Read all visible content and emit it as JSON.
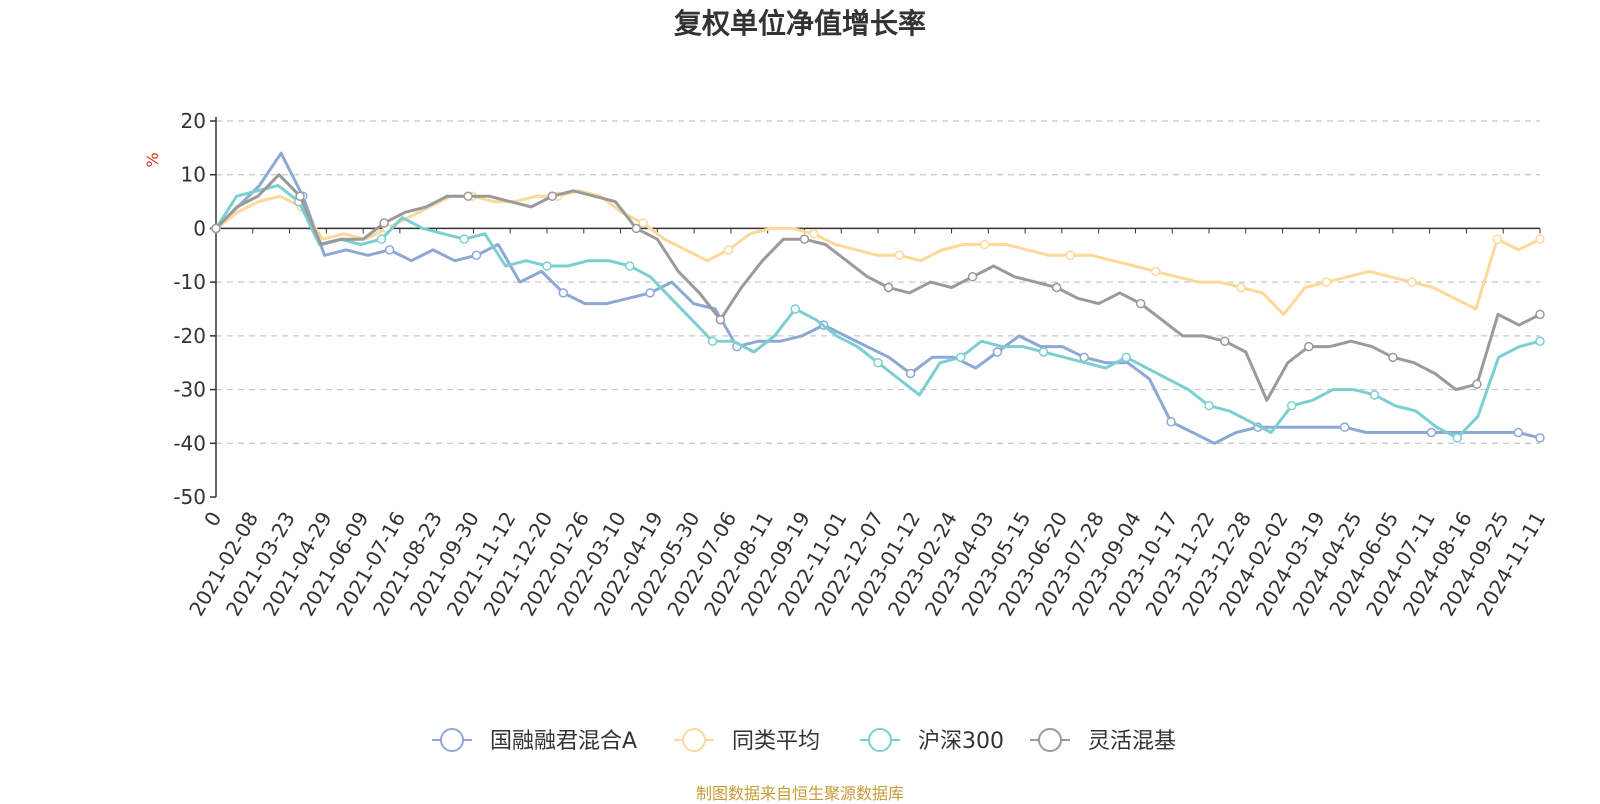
{
  "chart_data": {
    "type": "line",
    "title": "复权单位净值增长率",
    "ylabel": "%",
    "ylim": [
      -50,
      20
    ],
    "yticks": [
      20,
      10,
      0,
      -10,
      -20,
      -30,
      -40,
      -50
    ],
    "grid": true,
    "legend_position": "bottom",
    "x_tick_labels": [
      "0",
      "2021-02-08",
      "2021-03-23",
      "2021-04-29",
      "2021-06-09",
      "2021-07-16",
      "2021-08-23",
      "2021-09-30",
      "2021-11-12",
      "2021-12-20",
      "2022-01-26",
      "2022-03-10",
      "2022-04-19",
      "2022-05-30",
      "2022-07-06",
      "2022-08-11",
      "2022-09-19",
      "2022-11-01",
      "2022-12-07",
      "2023-01-12",
      "2023-02-24",
      "2023-04-03",
      "2023-05-15",
      "2023-06-20",
      "2023-07-28",
      "2023-09-04",
      "2023-10-17",
      "2023-11-22",
      "2023-12-28",
      "2024-02-02",
      "2024-03-19",
      "2024-04-25",
      "2024-06-05",
      "2024-07-11",
      "2024-08-16",
      "2024-09-25",
      "2024-11-11"
    ],
    "series": [
      {
        "name": "国融融君混合A",
        "color": "#8ea8d6",
        "values": [
          0,
          4,
          8,
          14,
          6,
          -5,
          -4,
          -5,
          -4,
          -6,
          -4,
          -6,
          -5,
          -3,
          -10,
          -8,
          -12,
          -14,
          -14,
          -13,
          -12,
          -10,
          -14,
          -15,
          -22,
          -21,
          -21,
          -20,
          -18,
          -20,
          -22,
          -24,
          -27,
          -24,
          -24,
          -26,
          -23,
          -20,
          -22,
          -22,
          -24,
          -25,
          -25,
          -28,
          -36,
          -38,
          -40,
          -38,
          -37,
          -37,
          -37,
          -37,
          -37,
          -38,
          -38,
          -38,
          -38,
          -38,
          -38,
          -38,
          -38,
          -39
        ]
      },
      {
        "name": "同类平均",
        "color": "#fcd899",
        "values": [
          0,
          3,
          5,
          6,
          4,
          -2,
          -1,
          -2,
          0,
          2,
          4,
          6,
          6,
          5,
          5,
          6,
          6,
          7,
          6,
          3,
          1,
          -2,
          -4,
          -6,
          -4,
          -1,
          0,
          0,
          -1,
          -3,
          -4,
          -5,
          -5,
          -6,
          -4,
          -3,
          -3,
          -3,
          -4,
          -5,
          -5,
          -5,
          -6,
          -7,
          -8,
          -9,
          -10,
          -10,
          -11,
          -12,
          -16,
          -11,
          -10,
          -9,
          -8,
          -9,
          -10,
          -11,
          -13,
          -15,
          -2,
          -4,
          -2
        ]
      },
      {
        "name": "沪深300",
        "color": "#7ccfd1",
        "values": [
          0,
          6,
          7,
          8,
          5,
          -3,
          -2,
          -3,
          -2,
          2,
          0,
          -1,
          -2,
          -1,
          -7,
          -6,
          -7,
          -7,
          -6,
          -6,
          -7,
          -9,
          -13,
          -17,
          -21,
          -21,
          -23,
          -20,
          -15,
          -17,
          -20,
          -22,
          -25,
          -28,
          -31,
          -25,
          -24,
          -21,
          -22,
          -22,
          -23,
          -24,
          -25,
          -26,
          -24,
          -26,
          -28,
          -30,
          -33,
          -34,
          -36,
          -38,
          -33,
          -32,
          -30,
          -30,
          -31,
          -33,
          -34,
          -37,
          -39,
          -35,
          -24,
          -22,
          -21
        ]
      },
      {
        "name": "灵活混基",
        "color": "#9a9a9a",
        "values": [
          0,
          4,
          6,
          10,
          6,
          -3,
          -2,
          -2,
          1,
          3,
          4,
          6,
          6,
          6,
          5,
          4,
          6,
          7,
          6,
          5,
          0,
          -2,
          -8,
          -12,
          -17,
          -11,
          -6,
          -2,
          -2,
          -3,
          -6,
          -9,
          -11,
          -12,
          -10,
          -11,
          -9,
          -7,
          -9,
          -10,
          -11,
          -13,
          -14,
          -12,
          -14,
          -17,
          -20,
          -20,
          -21,
          -23,
          -32,
          -25,
          -22,
          -22,
          -21,
          -22,
          -24,
          -25,
          -27,
          -30,
          -29,
          -16,
          -18,
          -16
        ]
      }
    ]
  },
  "footer": {
    "source": "制图数据来自恒生聚源数据库"
  }
}
